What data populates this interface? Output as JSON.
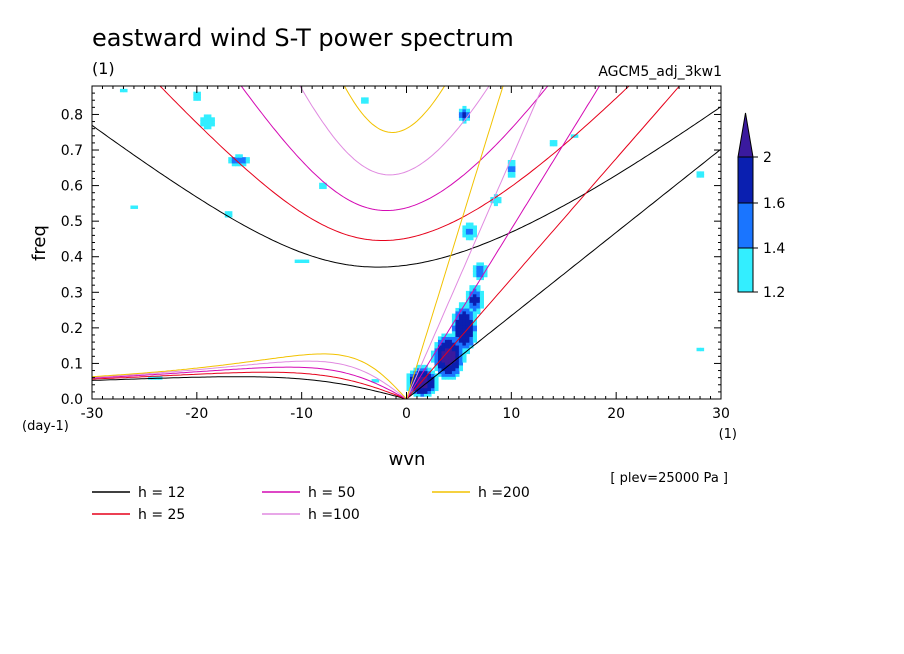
{
  "chart_data": {
    "type": "heatmap",
    "title": "eastward wind S-T power spectrum",
    "subtitle": "(1)",
    "run_label": "AGCM5_adj_3kw1",
    "xlabel": "wvn",
    "ylabel": "freq",
    "x_unit": "(1)",
    "y_unit": "(day-1)",
    "level_note": "[ plev=25000 Pa ]",
    "xlim": [
      -30,
      30
    ],
    "ylim": [
      0,
      0.88
    ],
    "x_ticks": [
      -30,
      -20,
      -10,
      0,
      10,
      20,
      30
    ],
    "y_ticks": [
      0.0,
      0.1,
      0.2,
      0.3,
      0.4,
      0.5,
      0.6,
      0.7,
      0.8
    ],
    "x_tick_labels": [
      "-30",
      "-20",
      "-10",
      "0",
      "10",
      "20",
      "30"
    ],
    "y_tick_labels": [
      "0.0",
      "0.1",
      "0.2",
      "0.3",
      "0.4",
      "0.5",
      "0.6",
      "0.7",
      "0.8"
    ],
    "colorbar": {
      "levels": [
        "1.2",
        "1.4",
        "1.6",
        "2"
      ],
      "colors": [
        "#33eeff",
        "#1a75ff",
        "#0a1fb0",
        "#3a1a9e"
      ]
    },
    "dispersion_curves": [
      {
        "label": "h = 12",
        "h": 12,
        "color": "#000000"
      },
      {
        "label": "h = 25",
        "h": 25,
        "color": "#e6001a"
      },
      {
        "label": "h = 50",
        "h": 50,
        "color": "#d40ab4"
      },
      {
        "label": "h =100",
        "h": 100,
        "color": "#e08ae0"
      },
      {
        "label": "h =200",
        "h": 200,
        "color": "#f2c200"
      }
    ],
    "spectral_blobs": [
      {
        "k": 1.5,
        "f": 0.05,
        "sk": 1.4,
        "sf": 0.04,
        "a": 2.2
      },
      {
        "k": 4.0,
        "f": 0.12,
        "sk": 1.4,
        "sf": 0.06,
        "a": 2.2
      },
      {
        "k": 5.5,
        "f": 0.2,
        "sk": 1.2,
        "sf": 0.07,
        "a": 2.0
      },
      {
        "k": 6.5,
        "f": 0.28,
        "sk": 1.0,
        "sf": 0.05,
        "a": 1.7
      },
      {
        "k": 7.0,
        "f": 0.36,
        "sk": 1.0,
        "sf": 0.04,
        "a": 1.5
      },
      {
        "k": 6.0,
        "f": 0.47,
        "sk": 1.0,
        "sf": 0.04,
        "a": 1.45
      },
      {
        "k": 5.5,
        "f": 0.8,
        "sk": 0.6,
        "sf": 0.03,
        "a": 1.7
      },
      {
        "k": 10.0,
        "f": 0.65,
        "sk": 0.8,
        "sf": 0.04,
        "a": 1.45
      },
      {
        "k": -16.0,
        "f": 0.67,
        "sk": 1.6,
        "sf": 0.02,
        "a": 1.55
      },
      {
        "k": -19.0,
        "f": 0.78,
        "sk": 1.2,
        "sf": 0.03,
        "a": 1.4
      },
      {
        "k": -20.0,
        "f": 0.85,
        "sk": 0.8,
        "sf": 0.02,
        "a": 1.4
      },
      {
        "k": -10.0,
        "f": 0.39,
        "sk": 1.2,
        "sf": 0.01,
        "a": 1.35
      },
      {
        "k": -26.0,
        "f": 0.54,
        "sk": 1.0,
        "sf": 0.01,
        "a": 1.35
      },
      {
        "k": -8.0,
        "f": 0.6,
        "sk": 0.7,
        "sf": 0.02,
        "a": 1.3
      },
      {
        "k": -4.0,
        "f": 0.84,
        "sk": 1.2,
        "sf": 0.02,
        "a": 1.3
      },
      {
        "k": -24.0,
        "f": 0.06,
        "sk": 1.5,
        "sf": 0.008,
        "a": 1.3
      },
      {
        "k": -3.0,
        "f": 0.05,
        "sk": 0.5,
        "sf": 0.01,
        "a": 1.5
      },
      {
        "k": 14.0,
        "f": 0.72,
        "sk": 1.0,
        "sf": 0.02,
        "a": 1.35
      },
      {
        "k": 28.0,
        "f": 0.63,
        "sk": 0.8,
        "sf": 0.02,
        "a": 1.3
      },
      {
        "k": 28.0,
        "f": 0.14,
        "sk": 0.8,
        "sf": 0.01,
        "a": 1.3
      },
      {
        "k": 16.0,
        "f": 0.74,
        "sk": 0.7,
        "sf": 0.02,
        "a": 1.3
      },
      {
        "k": -17.0,
        "f": 0.52,
        "sk": 1.0,
        "sf": 0.015,
        "a": 1.3
      },
      {
        "k": -27.0,
        "f": 0.87,
        "sk": 0.8,
        "sf": 0.01,
        "a": 1.3
      },
      {
        "k": 8.5,
        "f": 0.56,
        "sk": 0.8,
        "sf": 0.03,
        "a": 1.35
      }
    ]
  }
}
